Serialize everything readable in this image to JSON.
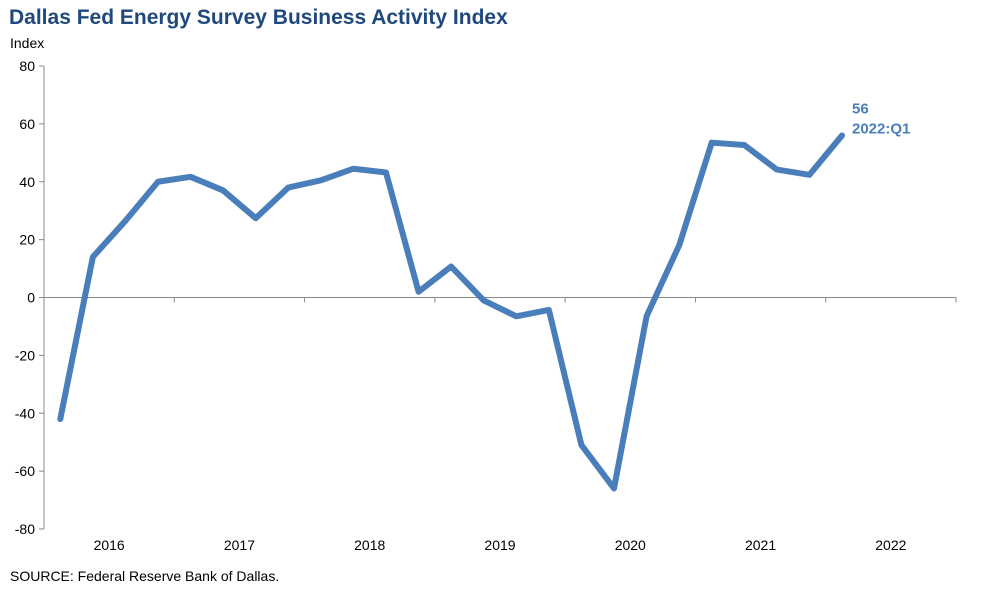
{
  "chart_data": {
    "type": "line",
    "title": "Dallas Fed Energy Survey Business Activity Index",
    "ylabel": "Index",
    "xlabel": "",
    "ylim": [
      -80,
      80
    ],
    "yticks": [
      80,
      60,
      40,
      20,
      0,
      -20,
      -40,
      -60,
      -80
    ],
    "xtick_labels": [
      "2016",
      "2017",
      "2018",
      "2019",
      "2020",
      "2021",
      "2022"
    ],
    "x": [
      "2016:Q1",
      "2016:Q2",
      "2016:Q3",
      "2016:Q4",
      "2017:Q1",
      "2017:Q2",
      "2017:Q3",
      "2017:Q4",
      "2018:Q1",
      "2018:Q2",
      "2018:Q3",
      "2018:Q4",
      "2019:Q1",
      "2019:Q2",
      "2019:Q3",
      "2019:Q4",
      "2020:Q1",
      "2020:Q2",
      "2020:Q3",
      "2020:Q4",
      "2021:Q1",
      "2021:Q2",
      "2021:Q3",
      "2021:Q4",
      "2022:Q1"
    ],
    "values": [
      -42,
      14,
      26.5,
      40,
      41.7,
      37,
      27.4,
      38,
      40.5,
      44.5,
      43.2,
      2,
      10.7,
      -1,
      -6.5,
      -4.3,
      -51,
      -66,
      -6.5,
      18,
      53.5,
      52.7,
      44.2,
      42.4,
      56
    ],
    "series_color": "#4a7ebb",
    "grid": false,
    "annotation": {
      "value": "56",
      "label": "2022:Q1"
    }
  },
  "source": "SOURCE:  Federal Reserve Bank of Dallas."
}
